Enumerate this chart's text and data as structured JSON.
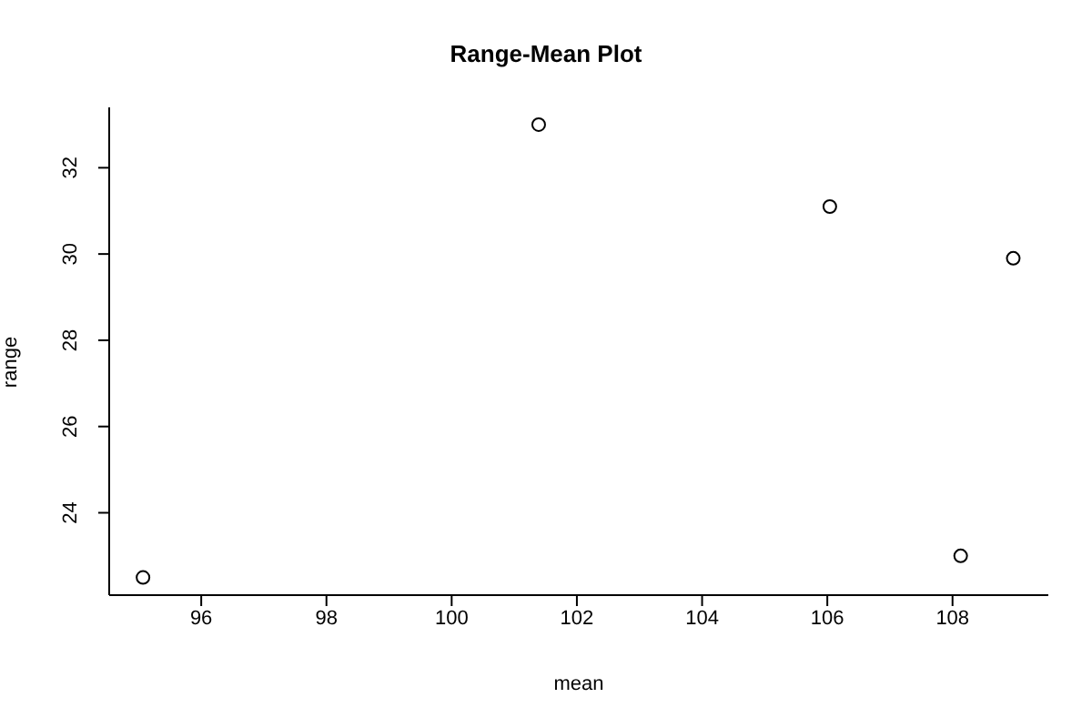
{
  "chart_data": {
    "type": "scatter",
    "title": "Range-Mean Plot",
    "xlabel": "mean",
    "ylabel": "range",
    "x": [
      95.07,
      101.39,
      106.04,
      108.13,
      108.97
    ],
    "values": [
      22.5,
      33.0,
      31.1,
      23.0,
      29.9
    ],
    "color": "#000000",
    "marker": "circle",
    "xlim": [
      94.53,
      109.53
    ],
    "xticks": [
      96,
      98,
      100,
      102,
      104,
      106,
      108
    ],
    "ylim": [
      22.09,
      33.4
    ],
    "yticks": [
      24,
      26,
      28,
      30,
      32
    ],
    "grid": false,
    "legend": false
  }
}
